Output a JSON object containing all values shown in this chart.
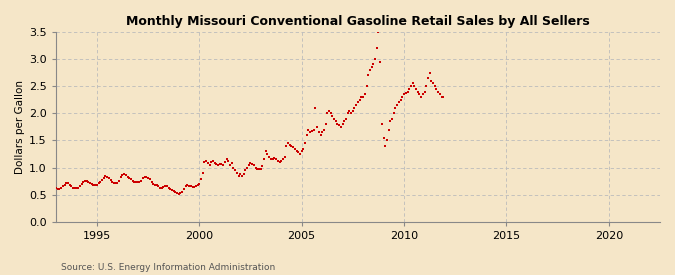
{
  "title": "Monthly Missouri Conventional Gasoline Retail Sales by All Sellers",
  "ylabel": "Dollars per Gallon",
  "source": "Source: U.S. Energy Information Administration",
  "bg_color": "#F5E6C8",
  "plot_bg_color": "#F5E6C8",
  "marker_color": "#CC0000",
  "grid_color": "#BBBBBB",
  "xlim": [
    1993.0,
    2022.5
  ],
  "ylim": [
    0.0,
    3.5
  ],
  "yticks": [
    0.0,
    0.5,
    1.0,
    1.5,
    2.0,
    2.5,
    3.0,
    3.5
  ],
  "xticks": [
    1995,
    2000,
    2005,
    2010,
    2015,
    2020
  ],
  "data": [
    [
      1993.0,
      0.62
    ],
    [
      1993.08,
      0.6
    ],
    [
      1993.17,
      0.6
    ],
    [
      1993.25,
      0.62
    ],
    [
      1993.33,
      0.65
    ],
    [
      1993.42,
      0.68
    ],
    [
      1993.5,
      0.72
    ],
    [
      1993.58,
      0.72
    ],
    [
      1993.67,
      0.68
    ],
    [
      1993.75,
      0.65
    ],
    [
      1993.83,
      0.63
    ],
    [
      1993.92,
      0.62
    ],
    [
      1994.0,
      0.62
    ],
    [
      1994.08,
      0.63
    ],
    [
      1994.17,
      0.65
    ],
    [
      1994.25,
      0.7
    ],
    [
      1994.33,
      0.74
    ],
    [
      1994.42,
      0.76
    ],
    [
      1994.5,
      0.75
    ],
    [
      1994.58,
      0.73
    ],
    [
      1994.67,
      0.71
    ],
    [
      1994.75,
      0.7
    ],
    [
      1994.83,
      0.68
    ],
    [
      1994.92,
      0.67
    ],
    [
      1995.0,
      0.68
    ],
    [
      1995.08,
      0.71
    ],
    [
      1995.17,
      0.74
    ],
    [
      1995.25,
      0.77
    ],
    [
      1995.33,
      0.81
    ],
    [
      1995.42,
      0.84
    ],
    [
      1995.5,
      0.83
    ],
    [
      1995.58,
      0.8
    ],
    [
      1995.67,
      0.77
    ],
    [
      1995.75,
      0.74
    ],
    [
      1995.83,
      0.72
    ],
    [
      1995.92,
      0.71
    ],
    [
      1996.0,
      0.72
    ],
    [
      1996.08,
      0.75
    ],
    [
      1996.17,
      0.82
    ],
    [
      1996.25,
      0.87
    ],
    [
      1996.33,
      0.88
    ],
    [
      1996.42,
      0.86
    ],
    [
      1996.5,
      0.83
    ],
    [
      1996.58,
      0.8
    ],
    [
      1996.67,
      0.78
    ],
    [
      1996.75,
      0.76
    ],
    [
      1996.83,
      0.74
    ],
    [
      1996.92,
      0.73
    ],
    [
      1997.0,
      0.73
    ],
    [
      1997.08,
      0.74
    ],
    [
      1997.17,
      0.76
    ],
    [
      1997.25,
      0.8
    ],
    [
      1997.33,
      0.82
    ],
    [
      1997.42,
      0.82
    ],
    [
      1997.5,
      0.81
    ],
    [
      1997.58,
      0.78
    ],
    [
      1997.67,
      0.73
    ],
    [
      1997.75,
      0.7
    ],
    [
      1997.83,
      0.68
    ],
    [
      1997.92,
      0.67
    ],
    [
      1998.0,
      0.65
    ],
    [
      1998.08,
      0.63
    ],
    [
      1998.17,
      0.62
    ],
    [
      1998.25,
      0.64
    ],
    [
      1998.33,
      0.65
    ],
    [
      1998.42,
      0.65
    ],
    [
      1998.5,
      0.63
    ],
    [
      1998.58,
      0.61
    ],
    [
      1998.67,
      0.59
    ],
    [
      1998.75,
      0.56
    ],
    [
      1998.83,
      0.54
    ],
    [
      1998.92,
      0.53
    ],
    [
      1999.0,
      0.52
    ],
    [
      1999.08,
      0.53
    ],
    [
      1999.17,
      0.55
    ],
    [
      1999.25,
      0.6
    ],
    [
      1999.33,
      0.65
    ],
    [
      1999.42,
      0.67
    ],
    [
      1999.5,
      0.66
    ],
    [
      1999.58,
      0.65
    ],
    [
      1999.67,
      0.64
    ],
    [
      1999.75,
      0.64
    ],
    [
      1999.83,
      0.65
    ],
    [
      1999.92,
      0.67
    ],
    [
      2000.0,
      0.7
    ],
    [
      2000.08,
      0.78
    ],
    [
      2000.17,
      0.9
    ],
    [
      2000.25,
      1.1
    ],
    [
      2000.33,
      1.12
    ],
    [
      2000.42,
      1.08
    ],
    [
      2000.5,
      1.05
    ],
    [
      2000.58,
      1.1
    ],
    [
      2000.67,
      1.12
    ],
    [
      2000.75,
      1.08
    ],
    [
      2000.83,
      1.06
    ],
    [
      2000.92,
      1.05
    ],
    [
      2001.0,
      1.07
    ],
    [
      2001.08,
      1.06
    ],
    [
      2001.17,
      1.04
    ],
    [
      2001.25,
      1.1
    ],
    [
      2001.33,
      1.15
    ],
    [
      2001.42,
      1.12
    ],
    [
      2001.5,
      1.05
    ],
    [
      2001.58,
      1.08
    ],
    [
      2001.67,
      1.0
    ],
    [
      2001.75,
      0.95
    ],
    [
      2001.83,
      0.9
    ],
    [
      2001.92,
      0.85
    ],
    [
      2002.0,
      0.88
    ],
    [
      2002.08,
      0.85
    ],
    [
      2002.17,
      0.88
    ],
    [
      2002.25,
      0.95
    ],
    [
      2002.33,
      1.0
    ],
    [
      2002.42,
      1.05
    ],
    [
      2002.5,
      1.08
    ],
    [
      2002.58,
      1.06
    ],
    [
      2002.67,
      1.05
    ],
    [
      2002.75,
      1.0
    ],
    [
      2002.83,
      0.98
    ],
    [
      2002.92,
      0.97
    ],
    [
      2003.0,
      0.98
    ],
    [
      2003.08,
      1.02
    ],
    [
      2003.17,
      1.15
    ],
    [
      2003.25,
      1.3
    ],
    [
      2003.33,
      1.25
    ],
    [
      2003.42,
      1.2
    ],
    [
      2003.5,
      1.15
    ],
    [
      2003.58,
      1.15
    ],
    [
      2003.67,
      1.18
    ],
    [
      2003.75,
      1.15
    ],
    [
      2003.83,
      1.12
    ],
    [
      2003.92,
      1.1
    ],
    [
      2004.0,
      1.12
    ],
    [
      2004.08,
      1.15
    ],
    [
      2004.17,
      1.2
    ],
    [
      2004.25,
      1.4
    ],
    [
      2004.33,
      1.45
    ],
    [
      2004.42,
      1.42
    ],
    [
      2004.5,
      1.4
    ],
    [
      2004.58,
      1.38
    ],
    [
      2004.67,
      1.35
    ],
    [
      2004.75,
      1.3
    ],
    [
      2004.83,
      1.28
    ],
    [
      2004.92,
      1.25
    ],
    [
      2005.0,
      1.3
    ],
    [
      2005.08,
      1.35
    ],
    [
      2005.17,
      1.45
    ],
    [
      2005.25,
      1.6
    ],
    [
      2005.33,
      1.7
    ],
    [
      2005.42,
      1.65
    ],
    [
      2005.5,
      1.68
    ],
    [
      2005.58,
      1.7
    ],
    [
      2005.67,
      2.1
    ],
    [
      2005.75,
      1.75
    ],
    [
      2005.83,
      1.65
    ],
    [
      2005.92,
      1.6
    ],
    [
      2006.0,
      1.65
    ],
    [
      2006.08,
      1.7
    ],
    [
      2006.17,
      1.8
    ],
    [
      2006.25,
      2.0
    ],
    [
      2006.33,
      2.05
    ],
    [
      2006.42,
      2.0
    ],
    [
      2006.5,
      1.95
    ],
    [
      2006.58,
      1.9
    ],
    [
      2006.67,
      1.85
    ],
    [
      2006.75,
      1.8
    ],
    [
      2006.83,
      1.78
    ],
    [
      2006.92,
      1.75
    ],
    [
      2007.0,
      1.8
    ],
    [
      2007.08,
      1.85
    ],
    [
      2007.17,
      1.9
    ],
    [
      2007.25,
      2.0
    ],
    [
      2007.33,
      2.05
    ],
    [
      2007.42,
      2.0
    ],
    [
      2007.5,
      2.05
    ],
    [
      2007.58,
      2.1
    ],
    [
      2007.67,
      2.15
    ],
    [
      2007.75,
      2.2
    ],
    [
      2007.83,
      2.25
    ],
    [
      2007.92,
      2.3
    ],
    [
      2008.0,
      2.3
    ],
    [
      2008.08,
      2.35
    ],
    [
      2008.17,
      2.5
    ],
    [
      2008.25,
      2.7
    ],
    [
      2008.33,
      2.8
    ],
    [
      2008.42,
      2.85
    ],
    [
      2008.5,
      2.9
    ],
    [
      2008.58,
      3.0
    ],
    [
      2008.67,
      3.2
    ],
    [
      2008.75,
      3.5
    ],
    [
      2008.83,
      2.95
    ],
    [
      2008.92,
      1.8
    ],
    [
      2009.0,
      1.55
    ],
    [
      2009.08,
      1.4
    ],
    [
      2009.17,
      1.5
    ],
    [
      2009.25,
      1.7
    ],
    [
      2009.33,
      1.85
    ],
    [
      2009.42,
      1.9
    ],
    [
      2009.5,
      2.0
    ],
    [
      2009.58,
      2.1
    ],
    [
      2009.67,
      2.15
    ],
    [
      2009.75,
      2.2
    ],
    [
      2009.83,
      2.25
    ],
    [
      2009.92,
      2.3
    ],
    [
      2010.0,
      2.35
    ],
    [
      2010.08,
      2.38
    ],
    [
      2010.17,
      2.4
    ],
    [
      2010.25,
      2.45
    ],
    [
      2010.33,
      2.5
    ],
    [
      2010.42,
      2.55
    ],
    [
      2010.5,
      2.5
    ],
    [
      2010.58,
      2.45
    ],
    [
      2010.67,
      2.4
    ],
    [
      2010.75,
      2.35
    ],
    [
      2010.83,
      2.3
    ],
    [
      2010.92,
      2.35
    ],
    [
      2011.0,
      2.4
    ],
    [
      2011.08,
      2.5
    ],
    [
      2011.17,
      2.65
    ],
    [
      2011.25,
      2.75
    ],
    [
      2011.33,
      2.6
    ],
    [
      2011.42,
      2.55
    ],
    [
      2011.5,
      2.5
    ],
    [
      2011.58,
      2.45
    ],
    [
      2011.67,
      2.4
    ],
    [
      2011.75,
      2.35
    ],
    [
      2011.83,
      2.3
    ],
    [
      2011.92,
      2.3
    ]
  ]
}
